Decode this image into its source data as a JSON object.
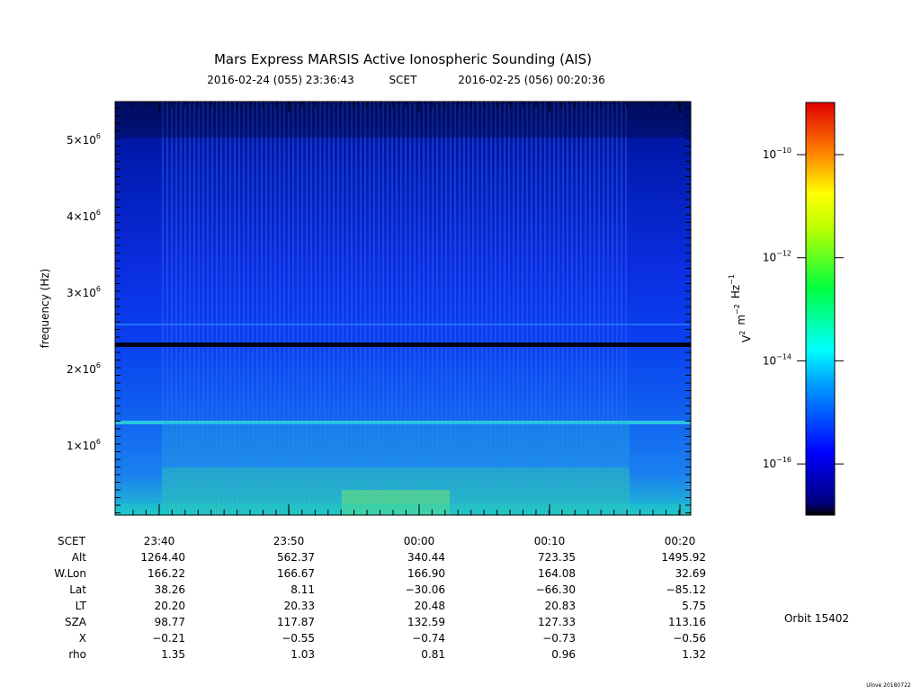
{
  "header": {
    "title": "Mars Express MARSIS Active Ionospheric Sounding (AIS)",
    "start": "2016-02-24 (055) 23:36:43",
    "timescale": "SCET",
    "end": "2016-02-25 (056) 00:20:36"
  },
  "y_axis": {
    "label": "frequency (Hz)",
    "ticks": [
      {
        "base": "1×10",
        "exp": "6"
      },
      {
        "base": "2×10",
        "exp": "6"
      },
      {
        "base": "3×10",
        "exp": "6"
      },
      {
        "base": "4×10",
        "exp": "6"
      },
      {
        "base": "5×10",
        "exp": "6"
      }
    ]
  },
  "colorbar": {
    "label": [
      {
        "text": "V",
        "exp": "2"
      },
      {
        "text": "m",
        "exp": "−2"
      },
      {
        "text": "Hz",
        "exp": "−1"
      }
    ],
    "ticks": [
      {
        "base": "10",
        "exp": "−10"
      },
      {
        "base": "10",
        "exp": "−12"
      },
      {
        "base": "10",
        "exp": "−14"
      },
      {
        "base": "10",
        "exp": "−16"
      }
    ]
  },
  "ephemeris": [
    {
      "label": "SCET",
      "values": [
        "23:40",
        "23:50",
        "00:00",
        "00:10",
        "00:20"
      ]
    },
    {
      "label": "Alt",
      "values": [
        "1264.40",
        "562.37",
        "340.44",
        "723.35",
        "1495.92"
      ]
    },
    {
      "label": "W.Lon",
      "values": [
        "166.22",
        "166.67",
        "166.90",
        "164.08",
        "32.69"
      ]
    },
    {
      "label": "Lat",
      "values": [
        "38.26",
        "8.11",
        "−30.06",
        "−66.30",
        "−85.12"
      ]
    },
    {
      "label": "LT",
      "values": [
        "20.20",
        "20.33",
        "20.48",
        "20.83",
        "5.75"
      ]
    },
    {
      "label": "SZA",
      "values": [
        "98.77",
        "117.87",
        "132.59",
        "127.33",
        "113.16"
      ]
    },
    {
      "label": "X",
      "values": [
        "−0.21",
        "−0.55",
        "−0.74",
        "−0.73",
        "−0.56"
      ]
    },
    {
      "label": "rho",
      "values": [
        "1.35",
        "1.03",
        "0.81",
        "0.96",
        "1.32"
      ]
    }
  ],
  "orbit": "Orbit 15402",
  "credit": "Ulove 20180722"
}
